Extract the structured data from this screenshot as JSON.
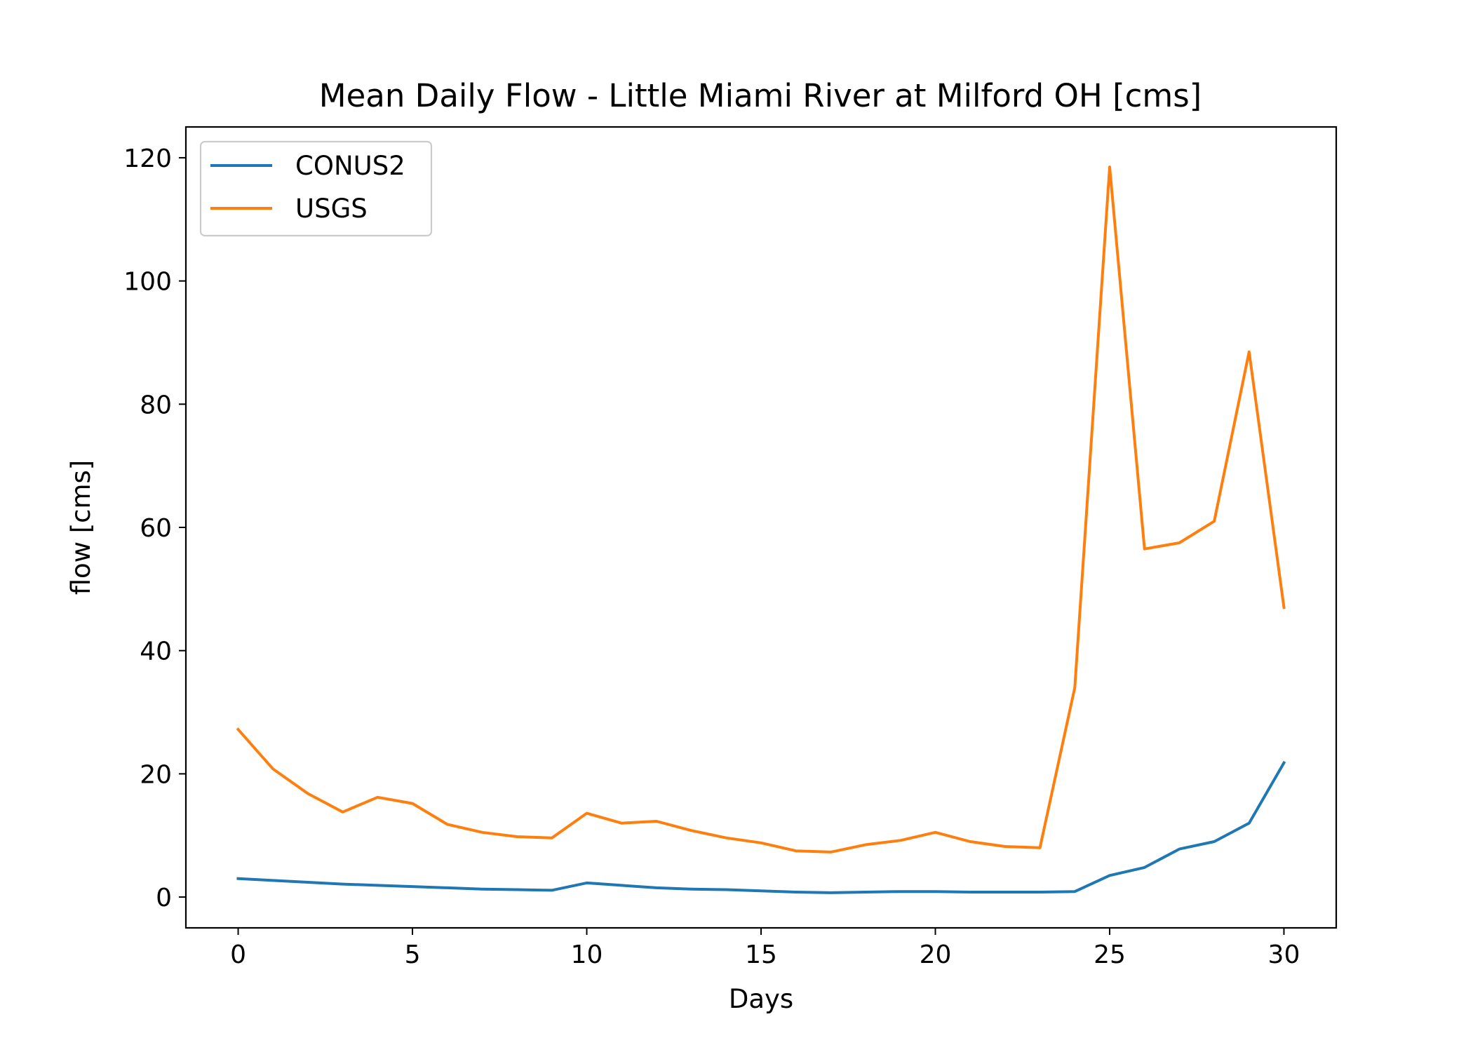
{
  "chart_data": {
    "type": "line",
    "title": "Mean Daily Flow - Little Miami River at Milford OH [cms]",
    "xlabel": "Days",
    "ylabel": "flow [cms]",
    "xlim": [
      -1.5,
      31.5
    ],
    "ylim": [
      -5,
      125
    ],
    "xticks": [
      0,
      5,
      10,
      15,
      20,
      25,
      30
    ],
    "yticks": [
      0,
      20,
      40,
      60,
      80,
      100,
      120
    ],
    "grid": false,
    "legend_position": "top-left",
    "x": [
      0,
      1,
      2,
      3,
      4,
      5,
      6,
      7,
      8,
      9,
      10,
      11,
      12,
      13,
      14,
      15,
      16,
      17,
      18,
      19,
      20,
      21,
      22,
      23,
      24,
      25,
      26,
      27,
      28,
      29,
      30
    ],
    "series": [
      {
        "name": "CONUS2",
        "color": "#1f77b4",
        "values": [
          3.0,
          2.7,
          2.4,
          2.1,
          1.9,
          1.7,
          1.5,
          1.3,
          1.2,
          1.1,
          2.3,
          1.9,
          1.5,
          1.3,
          1.2,
          1.0,
          0.8,
          0.7,
          0.8,
          0.9,
          0.9,
          0.8,
          0.8,
          0.8,
          0.9,
          3.5,
          4.8,
          7.8,
          9.0,
          12.0,
          21.8
        ]
      },
      {
        "name": "USGS",
        "color": "#ff7f0e",
        "values": [
          27.2,
          20.8,
          16.8,
          13.8,
          16.2,
          15.2,
          11.8,
          10.5,
          9.8,
          9.6,
          13.6,
          12.0,
          12.3,
          10.8,
          9.6,
          8.8,
          7.5,
          7.3,
          8.5,
          9.2,
          10.5,
          9.0,
          8.2,
          8.0,
          34.0,
          118.5,
          56.5,
          57.5,
          61.0,
          88.5,
          47.0
        ]
      }
    ]
  }
}
